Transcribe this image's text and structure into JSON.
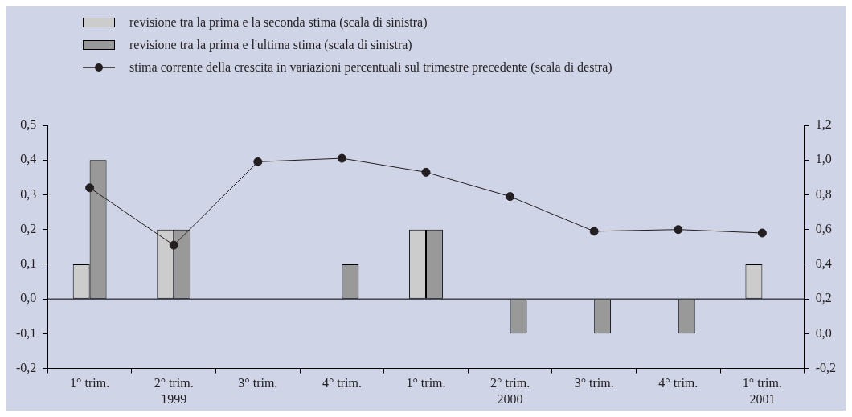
{
  "chart_data": {
    "type": "bar",
    "categories": [
      "1° trim.",
      "2° trim.\n1999",
      "3° trim.",
      "4° trim.",
      "1° trim.",
      "2° trim.\n2000",
      "3° trim.",
      "4° trim.",
      "1° trim.\n2001"
    ],
    "series": [
      {
        "name": "revisione tra la prima e la seconda stima (scala di sinistra)",
        "color": "#cccccc",
        "values": [
          0.1,
          0.2,
          0,
          0,
          0.2,
          0,
          0,
          0,
          0.1
        ]
      },
      {
        "name": "revisione tra la prima e l'ultima stima (scala di sinistra)",
        "color": "#999999",
        "values": [
          0.4,
          0.2,
          0,
          0.1,
          0.2,
          -0.1,
          -0.1,
          -0.1,
          null
        ]
      },
      {
        "name": "stima corrente della crescita in variazioni percentuali sul trimestre precedente (scala di destra)",
        "type": "line",
        "axis": "y2",
        "color": "#231f20",
        "marker": "circle",
        "values": [
          0.84,
          0.51,
          0.99,
          1.01,
          0.93,
          0.79,
          0.59,
          0.6,
          0.58
        ]
      }
    ],
    "ylim": [
      -0.2,
      0.5
    ],
    "yticks": [
      {
        "value": -0.2,
        "label": "-0,2"
      },
      {
        "value": -0.1,
        "label": "-0,1"
      },
      {
        "value": 0,
        "label": "0,0"
      },
      {
        "value": 0.1,
        "label": "0,1"
      },
      {
        "value": 0.2,
        "label": "0,2"
      },
      {
        "value": 0.3,
        "label": "0,3"
      },
      {
        "value": 0.4,
        "label": "0,4"
      },
      {
        "value": 0.5,
        "label": "0,5"
      }
    ],
    "y2lim": [
      -0.2,
      1.2
    ],
    "y2ticks": [
      {
        "value": -0.2,
        "label": "-0,2"
      },
      {
        "value": 0,
        "label": "0,0"
      },
      {
        "value": 0.2,
        "label": "0,2"
      },
      {
        "value": 0.4,
        "label": "0,4"
      },
      {
        "value": 0.6,
        "label": "0,6"
      },
      {
        "value": 0.8,
        "label": "0,8"
      },
      {
        "value": 1,
        "label": "1,0"
      },
      {
        "value": 1.2,
        "label": "1,2"
      }
    ],
    "ref_lines": [
      {
        "axis": "y",
        "value": 0,
        "color": "#000000"
      }
    ],
    "grid": false,
    "legend": "top left"
  }
}
